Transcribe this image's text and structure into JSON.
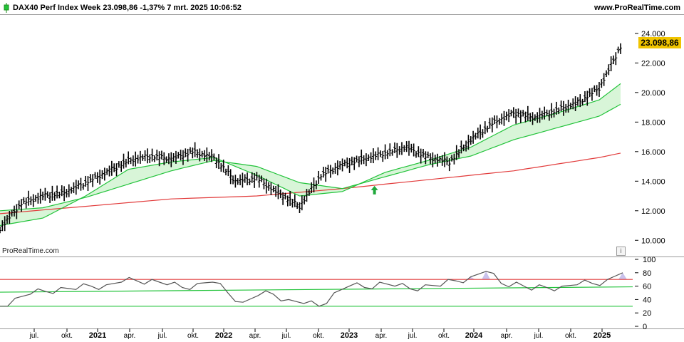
{
  "header": {
    "title": "DAX40 Perf Index Week 23.098,86 -1,37% 7 mrt. 2025 10:06:52",
    "site": "www.ProRealTime.com",
    "icon": "candle-icon"
  },
  "watermark": "ProRealTime.com",
  "info_icon": {
    "name": "info-icon",
    "glyph": "i"
  },
  "last_price": "23.098,86",
  "colors": {
    "bars": "#000000",
    "sma_short": "#22c33a",
    "sma_mid": "#22c33a",
    "sma_long": "#e23b3b",
    "band_fill": "#d8f5d8",
    "rsi_line": "#555555",
    "rsi_upper": "#e23b3b",
    "rsi_lower": "#22c33a",
    "highlight": "#f0c400"
  },
  "chart_data": {
    "type": "line",
    "title": "DAX40 Perf Index Week",
    "price_axis": {
      "ticks": [
        "24.000",
        "22.000",
        "20.000",
        "18.000",
        "16.000",
        "14.000",
        "12.000",
        "10.000"
      ],
      "ylim": [
        9000,
        25200
      ]
    },
    "time_axis": [
      "jul.",
      "okt.",
      "2021",
      "apr.",
      "jul.",
      "okt.",
      "2022",
      "apr.",
      "jul.",
      "okt.",
      "2023",
      "apr.",
      "jul.",
      "okt.",
      "2024",
      "apr.",
      "jul.",
      "okt.",
      "2025"
    ],
    "series": [
      {
        "kind": "weekly bars (close)",
        "x": [
          "2020-05",
          "2020-07",
          "2020-09",
          "2020-11",
          "2021-01",
          "2021-03",
          "2021-05",
          "2021-07",
          "2021-09",
          "2021-11",
          "2022-01",
          "2022-03",
          "2022-05",
          "2022-07",
          "2022-09",
          "2022-11",
          "2023-01",
          "2023-03",
          "2023-05",
          "2023-07",
          "2023-09",
          "2023-11",
          "2024-01",
          "2024-03",
          "2024-05",
          "2024-07",
          "2024-09",
          "2024-11",
          "2025-01",
          "2025-03"
        ],
        "values": [
          10800,
          12500,
          13000,
          13200,
          13900,
          14600,
          15400,
          15700,
          15500,
          16000,
          15600,
          14000,
          14200,
          13200,
          12300,
          14400,
          15100,
          15500,
          15900,
          16300,
          15600,
          15300,
          16800,
          17900,
          18600,
          18300,
          18800,
          19300,
          20300,
          23100
        ]
      },
      {
        "name": "",
        "kind": "moving average (short)",
        "x": [
          "2020-05",
          "2020-09",
          "2021-01",
          "2021-05",
          "2021-09",
          "2022-01",
          "2022-05",
          "2022-09",
          "2023-01",
          "2023-05",
          "2023-09",
          "2024-01",
          "2024-05",
          "2024-09",
          "2025-01",
          "2025-03"
        ],
        "values": [
          11000,
          11500,
          13000,
          14800,
          15300,
          15600,
          14400,
          13000,
          13300,
          14600,
          15400,
          16300,
          17800,
          18600,
          19500,
          20600
        ]
      },
      {
        "name": "",
        "kind": "moving average (medium)",
        "x": [
          "2020-05",
          "2020-09",
          "2021-01",
          "2021-05",
          "2021-09",
          "2022-01",
          "2022-05",
          "2022-09",
          "2023-01",
          "2023-05",
          "2023-09",
          "2024-01",
          "2024-05",
          "2024-09",
          "2025-01",
          "2025-03"
        ],
        "values": [
          12000,
          12200,
          12900,
          13800,
          14700,
          15400,
          15000,
          13900,
          13500,
          14300,
          15100,
          15700,
          16800,
          17600,
          18400,
          19200
        ]
      },
      {
        "name": "",
        "kind": "moving average (long)",
        "x": [
          "2020-05",
          "2021-01",
          "2021-09",
          "2022-05",
          "2023-01",
          "2023-09",
          "2024-05",
          "2025-01",
          "2025-03"
        ],
        "values": [
          11800,
          12300,
          12800,
          13000,
          13500,
          14100,
          14700,
          15600,
          15900
        ]
      }
    ],
    "indicator": {
      "ticks": [
        "100",
        "80",
        "60",
        "40",
        "20",
        "0"
      ],
      "ylim": [
        0,
        100
      ],
      "upper": 70,
      "lower": 30,
      "mid": 55,
      "values": [
        30,
        42,
        48,
        52,
        58,
        55,
        60,
        62,
        66,
        68,
        70,
        62,
        58,
        64,
        66,
        50,
        36,
        46,
        48,
        40,
        34,
        30,
        50,
        60,
        58,
        66,
        60,
        56,
        62,
        60,
        68,
        74,
        82,
        64,
        66,
        54,
        58,
        60,
        62,
        64,
        70,
        80
      ]
    }
  }
}
